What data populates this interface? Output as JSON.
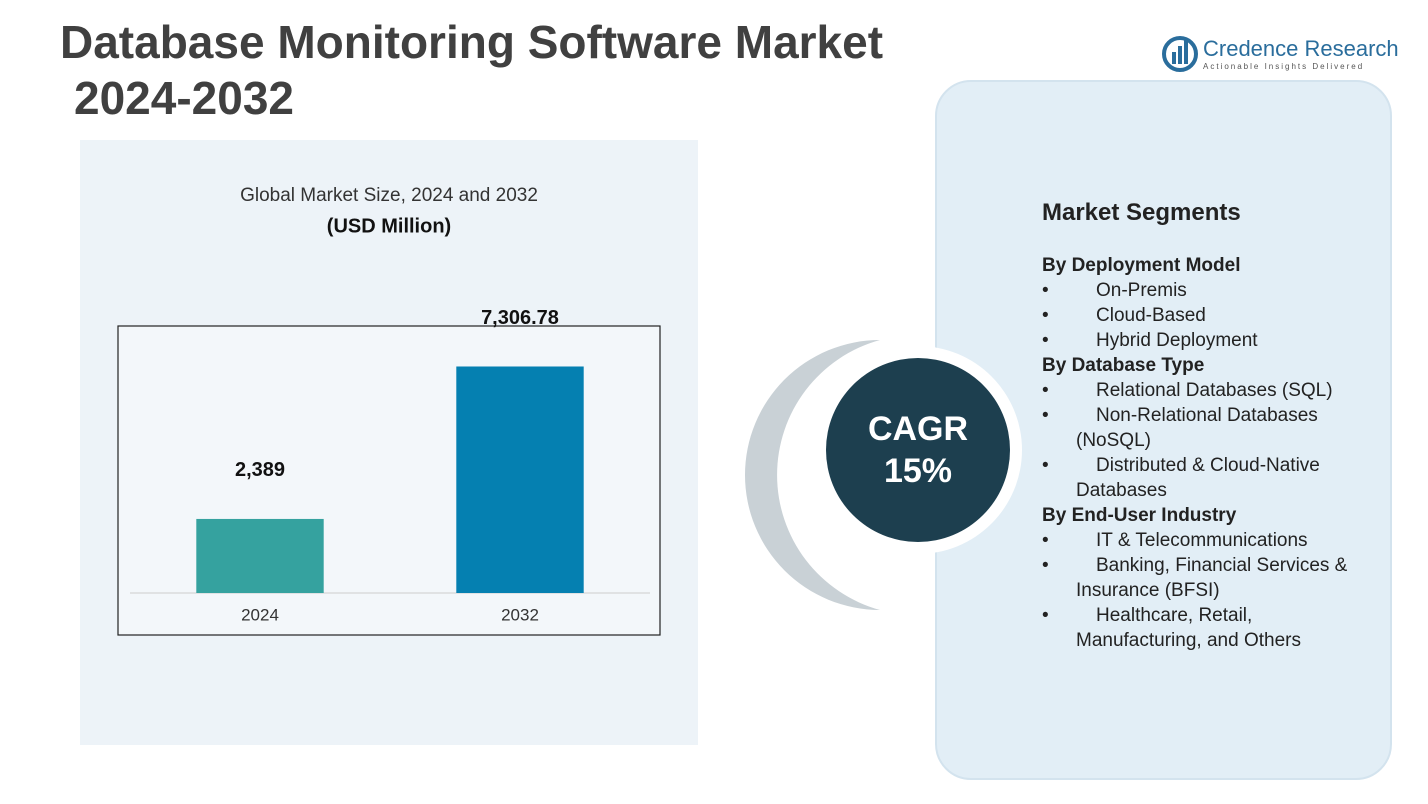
{
  "title_lines": [
    "Database Monitoring Software Market",
    "2024-2032"
  ],
  "logo": {
    "name": "Credence Research",
    "tagline": "Actionable Insights Delivered"
  },
  "chart_data": {
    "type": "bar",
    "title": "Global Market Size, 2024 and 2032",
    "subtitle": "(USD Million)",
    "categories": [
      "2024",
      "2032"
    ],
    "values": [
      2389,
      7306.78
    ],
    "value_labels": [
      "2,389",
      "7,306.78"
    ],
    "colors": [
      "#35a29f",
      "#0580b1"
    ],
    "ylim": [
      0,
      8000
    ]
  },
  "cagr": {
    "label": "CAGR",
    "value": "15%"
  },
  "segments": {
    "heading": "Market Segments",
    "groups": [
      {
        "title": "By Deployment Model",
        "items": [
          "On-Premis",
          "Cloud-Based",
          "Hybrid Deployment"
        ]
      },
      {
        "title": "By Database Type",
        "items": [
          "Relational Databases (SQL)",
          "Non-Relational Databases (NoSQL)",
          "Distributed & Cloud-Native Databases"
        ]
      },
      {
        "title": "By End-User Industry",
        "items": [
          "IT & Telecommunications",
          "Banking, Financial Services & Insurance (BFSI)",
          "Healthcare, Retail, Manufacturing, and Others"
        ]
      }
    ]
  }
}
